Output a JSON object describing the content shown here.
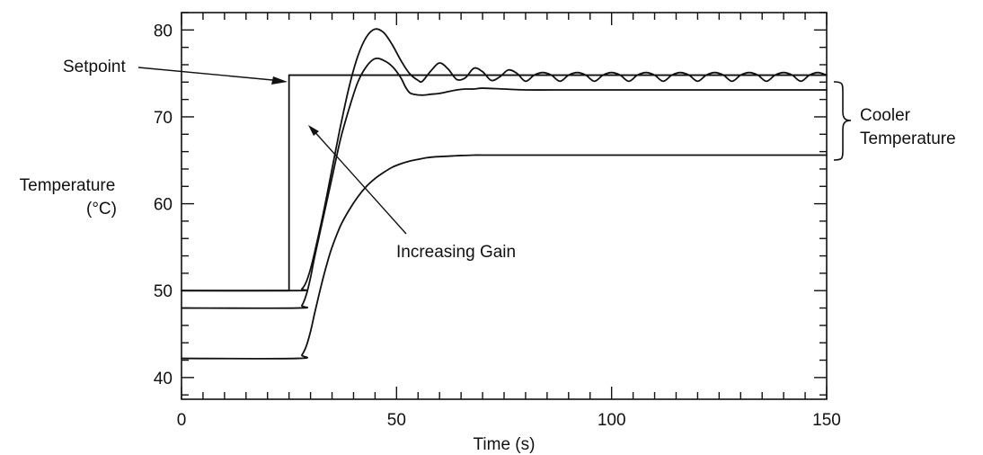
{
  "chart_data": {
    "type": "line",
    "xlabel": "Time (s)",
    "ylabel_line1": "Temperature",
    "ylabel_line2": "(°C)",
    "xlim": [
      0,
      150
    ],
    "ylim": [
      37.5,
      82
    ],
    "x_ticks": [
      0,
      50,
      100,
      150
    ],
    "y_ticks": [
      40,
      50,
      60,
      70,
      80
    ],
    "x_minor_step": 5,
    "y_minor_step": 2,
    "grid": false,
    "legend": "none",
    "series": [
      {
        "x": [
          0,
          25,
          25,
          150
        ],
        "y": [
          50,
          50,
          74.8,
          74.8
        ]
      },
      {
        "x": [
          0,
          27,
          28,
          29,
          30,
          31,
          33,
          35,
          37,
          39,
          41,
          43,
          45,
          47,
          49,
          51,
          53,
          55,
          56,
          58,
          60,
          62,
          64,
          66,
          68,
          70,
          72,
          74,
          76,
          78,
          80,
          82,
          84,
          86,
          88,
          90,
          92,
          94,
          96,
          98,
          100,
          102,
          104,
          106,
          108,
          110,
          112,
          114,
          116,
          118,
          120,
          122,
          124,
          126,
          128,
          130,
          132,
          134,
          136,
          138,
          140,
          142,
          144,
          146,
          148,
          150
        ],
        "y": [
          50,
          50,
          50.2,
          51,
          52.5,
          54.5,
          59,
          64,
          69,
          73.5,
          77,
          79.2,
          80.1,
          79.7,
          78.3,
          76.5,
          75,
          74.2,
          74.1,
          75.3,
          76.2,
          75.5,
          74.3,
          74.5,
          75.6,
          75.2,
          74.2,
          74.6,
          75.4,
          75,
          74.1,
          74.8,
          75.1,
          74.8,
          74.1,
          74.8,
          75.1,
          74.8,
          74.1,
          74.8,
          75.1,
          74.8,
          74.1,
          74.8,
          75.1,
          74.8,
          74.1,
          74.8,
          75.1,
          74.8,
          74.1,
          74.8,
          75.1,
          74.8,
          74.1,
          74.8,
          75.1,
          74.8,
          74.1,
          74.8,
          75.1,
          74.8,
          74.1,
          74.8,
          75.1,
          74.8
        ]
      },
      {
        "x": [
          0,
          27,
          28,
          29,
          30,
          31,
          33,
          35,
          37,
          39,
          41,
          43,
          45,
          47,
          49,
          51,
          52,
          53,
          54,
          56,
          58,
          60,
          62,
          64,
          66,
          68,
          70,
          75,
          80,
          90,
          100,
          110,
          120,
          130,
          140,
          150
        ],
        "y": [
          48,
          48,
          48.3,
          49.5,
          51.5,
          54,
          58.5,
          63,
          67.5,
          71,
          74,
          75.8,
          76.7,
          76.5,
          75.8,
          74.5,
          73.5,
          72.8,
          72.6,
          72.5,
          72.6,
          72.7,
          72.9,
          73.1,
          73.2,
          73.2,
          73.3,
          73.2,
          73.1,
          73.1,
          73.1,
          73.1,
          73.1,
          73.1,
          73.1,
          73.1
        ]
      },
      {
        "x": [
          0,
          27,
          28,
          29,
          30,
          31,
          32,
          33,
          34,
          35,
          37,
          39,
          41,
          43,
          45,
          47,
          49,
          51,
          53,
          55,
          57,
          59,
          61,
          63,
          65,
          68,
          70,
          80,
          90,
          100,
          120,
          150
        ],
        "y": [
          42.2,
          42.2,
          42.6,
          43.6,
          45.3,
          47.5,
          49.6,
          51.6,
          53.4,
          55,
          57.5,
          59.3,
          60.8,
          62,
          62.9,
          63.6,
          64.2,
          64.6,
          64.9,
          65.1,
          65.3,
          65.4,
          65.45,
          65.5,
          65.55,
          65.6,
          65.6,
          65.6,
          65.6,
          65.6,
          65.6,
          65.6
        ]
      }
    ],
    "annotations": {
      "setpoint": "Setpoint",
      "increasing_gain": "Increasing Gain",
      "cooler_line1": "Cooler",
      "cooler_line2": "Temperature"
    }
  }
}
